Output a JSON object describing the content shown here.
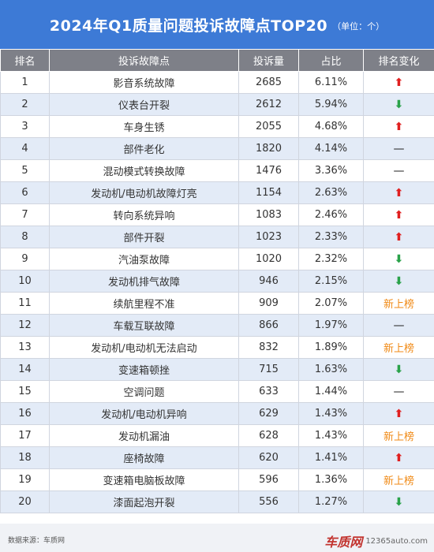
{
  "title": "2024年Q1质量问题投诉故障点TOP20",
  "unit": "（单位：个）",
  "columns": [
    "排名",
    "投诉故障点",
    "投诉量",
    "占比",
    "排名变化"
  ],
  "rows": [
    {
      "rank": "1",
      "issue": "影音系统故障",
      "count": "2685",
      "share": "6.11%",
      "change": "up"
    },
    {
      "rank": "2",
      "issue": "仪表台开裂",
      "count": "2612",
      "share": "5.94%",
      "change": "down"
    },
    {
      "rank": "3",
      "issue": "车身生锈",
      "count": "2055",
      "share": "4.68%",
      "change": "up"
    },
    {
      "rank": "4",
      "issue": "部件老化",
      "count": "1820",
      "share": "4.14%",
      "change": "same"
    },
    {
      "rank": "5",
      "issue": "混动模式转换故障",
      "count": "1476",
      "share": "3.36%",
      "change": "same"
    },
    {
      "rank": "6",
      "issue": "发动机/电动机故障灯亮",
      "count": "1154",
      "share": "2.63%",
      "change": "up"
    },
    {
      "rank": "7",
      "issue": "转向系统异响",
      "count": "1083",
      "share": "2.46%",
      "change": "up"
    },
    {
      "rank": "8",
      "issue": "部件开裂",
      "count": "1023",
      "share": "2.33%",
      "change": "up"
    },
    {
      "rank": "9",
      "issue": "汽油泵故障",
      "count": "1020",
      "share": "2.32%",
      "change": "down"
    },
    {
      "rank": "10",
      "issue": "发动机排气故障",
      "count": "946",
      "share": "2.15%",
      "change": "down"
    },
    {
      "rank": "11",
      "issue": "续航里程不准",
      "count": "909",
      "share": "2.07%",
      "change": "new"
    },
    {
      "rank": "12",
      "issue": "车载互联故障",
      "count": "866",
      "share": "1.97%",
      "change": "same"
    },
    {
      "rank": "13",
      "issue": "发动机/电动机无法启动",
      "count": "832",
      "share": "1.89%",
      "change": "new"
    },
    {
      "rank": "14",
      "issue": "变速箱顿挫",
      "count": "715",
      "share": "1.63%",
      "change": "down"
    },
    {
      "rank": "15",
      "issue": "空调问题",
      "count": "633",
      "share": "1.44%",
      "change": "same"
    },
    {
      "rank": "16",
      "issue": "发动机/电动机异响",
      "count": "629",
      "share": "1.43%",
      "change": "up"
    },
    {
      "rank": "17",
      "issue": "发动机漏油",
      "count": "628",
      "share": "1.43%",
      "change": "new"
    },
    {
      "rank": "18",
      "issue": "座椅故障",
      "count": "620",
      "share": "1.41%",
      "change": "up"
    },
    {
      "rank": "19",
      "issue": "变速箱电脑板故障",
      "count": "596",
      "share": "1.36%",
      "change": "new"
    },
    {
      "rank": "20",
      "issue": "漆面起泡开裂",
      "count": "556",
      "share": "1.27%",
      "change": "down"
    }
  ],
  "change_display": {
    "up": "⬆",
    "down": "⬇",
    "same": "—",
    "new": "新上榜"
  },
  "colors": {
    "up": "#e02020",
    "down": "#2aa24a",
    "new": "#f08a16",
    "header": "#3d7ad6"
  },
  "footer": {
    "source": "数据来源：车质网",
    "logo": "车质网",
    "site": "12365auto.com"
  }
}
